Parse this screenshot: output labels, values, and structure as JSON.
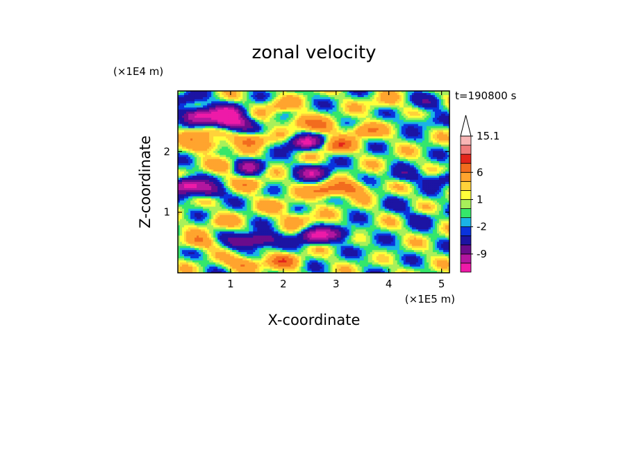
{
  "chart_data": {
    "type": "heatmap",
    "title": "zonal velocity",
    "xlabel": "X-coordinate",
    "ylabel": "Z-coordinate",
    "x_unit": "(×1E5 m)",
    "y_unit": "(×1E4 m)",
    "time_label": "t=190800 s",
    "x_range": [
      0,
      5.15
    ],
    "y_range": [
      0,
      3.0
    ],
    "x_ticks": [
      1,
      2,
      3,
      4,
      5
    ],
    "y_ticks": [
      1,
      2
    ],
    "colorbar": {
      "labels": [
        {
          "value": 15.1,
          "text": "15.1"
        },
        {
          "value": 6,
          "text": "6"
        },
        {
          "value": 1,
          "text": "1"
        },
        {
          "value": -2,
          "text": "-2"
        },
        {
          "value": -9,
          "text": "-9"
        }
      ],
      "levels": [
        -15,
        -12,
        -9,
        -6,
        -3,
        -2,
        -1,
        0,
        1,
        2,
        3,
        6,
        9,
        12,
        15.1
      ],
      "colors": [
        "#ee1aa8",
        "#b3169f",
        "#6a0c8c",
        "#1c14a3",
        "#0a33dd",
        "#1ab3e6",
        "#35e76a",
        "#a8f05a",
        "#ffff3a",
        "#ffd23a",
        "#ffa42e",
        "#f26c1e",
        "#e3251b",
        "#ef7b7b",
        "#f8b6b6"
      ],
      "extend_max": true
    },
    "field_model": {
      "blobs": [
        {
          "x": 0.4,
          "z": 2.6,
          "amp": -13
        },
        {
          "x": 0.9,
          "z": 2.5,
          "amp": -11
        },
        {
          "x": 0.95,
          "z": 2.65,
          "amp": -10
        },
        {
          "x": 1.2,
          "z": 2.45,
          "amp": -6
        },
        {
          "x": 0.2,
          "z": 2.85,
          "amp": -5
        },
        {
          "x": 0.6,
          "z": 2.1,
          "amp": 6
        },
        {
          "x": 0.35,
          "z": 2.3,
          "amp": 5
        },
        {
          "x": 1.4,
          "z": 2.2,
          "amp": 7
        },
        {
          "x": 1.0,
          "z": 1.75,
          "amp": 5
        },
        {
          "x": 0.15,
          "z": 1.45,
          "amp": -13
        },
        {
          "x": 0.55,
          "z": 1.35,
          "amp": -8
        },
        {
          "x": 1.35,
          "z": 1.75,
          "amp": -10
        },
        {
          "x": 1.45,
          "z": 1.45,
          "amp": 4
        },
        {
          "x": 2.4,
          "z": 2.15,
          "amp": -12
        },
        {
          "x": 2.6,
          "z": 1.65,
          "amp": -10
        },
        {
          "x": 2.3,
          "z": 2.5,
          "amp": 5
        },
        {
          "x": 2.7,
          "z": 2.4,
          "amp": 4
        },
        {
          "x": 3.0,
          "z": 2.1,
          "amp": 7
        },
        {
          "x": 3.5,
          "z": 2.35,
          "amp": 6
        },
        {
          "x": 2.8,
          "z": 1.35,
          "amp": 8
        },
        {
          "x": 3.3,
          "z": 1.4,
          "amp": 6
        },
        {
          "x": 4.3,
          "z": 1.6,
          "amp": -4
        },
        {
          "x": 5.0,
          "z": 1.55,
          "amp": -5
        },
        {
          "x": 4.6,
          "z": 2.5,
          "amp": -3
        },
        {
          "x": 4.8,
          "z": 2.8,
          "amp": -4
        },
        {
          "x": 2.6,
          "z": 0.6,
          "amp": -12
        },
        {
          "x": 3.1,
          "z": 0.65,
          "amp": -6
        },
        {
          "x": 1.6,
          "z": 0.55,
          "amp": -9
        },
        {
          "x": 1.25,
          "z": 0.5,
          "amp": -7
        },
        {
          "x": 0.4,
          "z": 0.5,
          "amp": 5
        },
        {
          "x": 1.3,
          "z": 0.15,
          "amp": 7
        },
        {
          "x": 2.0,
          "z": 0.2,
          "amp": 6
        },
        {
          "x": 2.3,
          "z": 0.9,
          "amp": 4
        },
        {
          "x": 0.8,
          "z": 0.85,
          "amp": 3
        },
        {
          "x": 3.8,
          "z": 0.35,
          "amp": -2
        },
        {
          "x": 4.6,
          "z": 0.9,
          "amp": -3
        },
        {
          "x": 4.2,
          "z": 1.1,
          "amp": -2
        },
        {
          "x": 1.9,
          "z": 1.1,
          "amp": 3
        },
        {
          "x": 3.9,
          "z": 2.8,
          "amp": 3
        },
        {
          "x": 1.9,
          "z": 2.75,
          "amp": 4
        }
      ]
    }
  }
}
